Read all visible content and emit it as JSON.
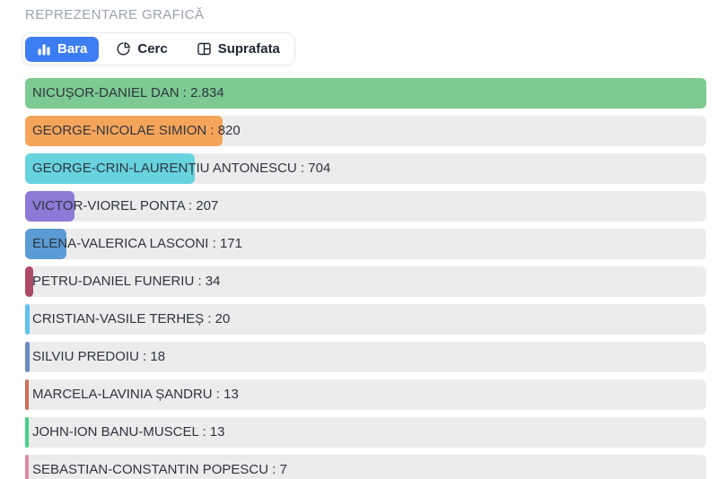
{
  "header": {
    "title": "REPREZENTARE GRAFICĂ"
  },
  "tabs": {
    "items": [
      {
        "label": "Bara",
        "icon": "bar-chart-icon",
        "active": true
      },
      {
        "label": "Cerc",
        "icon": "pie-chart-icon",
        "active": false
      },
      {
        "label": "Suprafata",
        "icon": "table-grid-icon",
        "active": false
      }
    ],
    "active_color": "#3d7df2"
  },
  "chart_data": {
    "type": "bar",
    "orientation": "horizontal",
    "title": "REPREZENTARE GRAFICĂ",
    "max_value": 2834,
    "track_color": "#ececec",
    "legend_position": "none",
    "grid": false,
    "categories": [
      "NICUȘOR-DANIEL DAN",
      "GEORGE-NICOLAE SIMION",
      "GEORGE-CRIN-LAURENȚIU ANTONESCU",
      "VICTOR-VIOREL PONTA",
      "ELENA-VALERICA LASCONI",
      "PETRU-DANIEL FUNERIU",
      "CRISTIAN-VASILE TERHEȘ",
      "SILVIU PREDOIU",
      "MARCELA-LAVINIA ȘANDRU",
      "JOHN-ION BANU-MUSCEL",
      "SEBASTIAN-CONSTANTIN POPESCU"
    ],
    "values": [
      2834,
      820,
      704,
      207,
      171,
      34,
      20,
      18,
      13,
      13,
      7
    ],
    "items": [
      {
        "name": "NICUȘOR-DANIEL DAN",
        "value": 2834,
        "label": "NICUȘOR-DANIEL DAN : 2.834",
        "color": "#7dca92"
      },
      {
        "name": "GEORGE-NICOLAE SIMION",
        "value": 820,
        "label": "GEORGE-NICOLAE SIMION : 820",
        "color": "#f5a55a"
      },
      {
        "name": "GEORGE-CRIN-LAURENȚIU ANTONESCU",
        "value": 704,
        "label": "GEORGE-CRIN-LAURENȚIU ANTONESCU : 704",
        "color": "#67d3df"
      },
      {
        "name": "VICTOR-VIOREL PONTA",
        "value": 207,
        "label": "VICTOR-VIOREL PONTA : 207",
        "color": "#8d7ad6"
      },
      {
        "name": "ELENA-VALERICA LASCONI",
        "value": 171,
        "label": "ELENA-VALERICA LASCONI : 171",
        "color": "#5b9bd5"
      },
      {
        "name": "PETRU-DANIEL FUNERIU",
        "value": 34,
        "label": "PETRU-DANIEL FUNERIU : 34",
        "color": "#ad4a68"
      },
      {
        "name": "CRISTIAN-VASILE TERHEȘ",
        "value": 20,
        "label": "CRISTIAN-VASILE TERHEȘ : 20",
        "color": "#5ec3ee"
      },
      {
        "name": "SILVIU PREDOIU",
        "value": 18,
        "label": "SILVIU PREDOIU : 18",
        "color": "#6b8cbe"
      },
      {
        "name": "MARCELA-LAVINIA ȘANDRU",
        "value": 13,
        "label": "MARCELA-LAVINIA ȘANDRU : 13",
        "color": "#cd7058"
      },
      {
        "name": "JOHN-ION BANU-MUSCEL",
        "value": 13,
        "label": "JOHN-ION BANU-MUSCEL : 13",
        "color": "#46d08c"
      },
      {
        "name": "SEBASTIAN-CONSTANTIN POPESCU",
        "value": 7,
        "label": "SEBASTIAN-CONSTANTIN POPESCU : 7",
        "color": "#de8caa"
      }
    ]
  }
}
